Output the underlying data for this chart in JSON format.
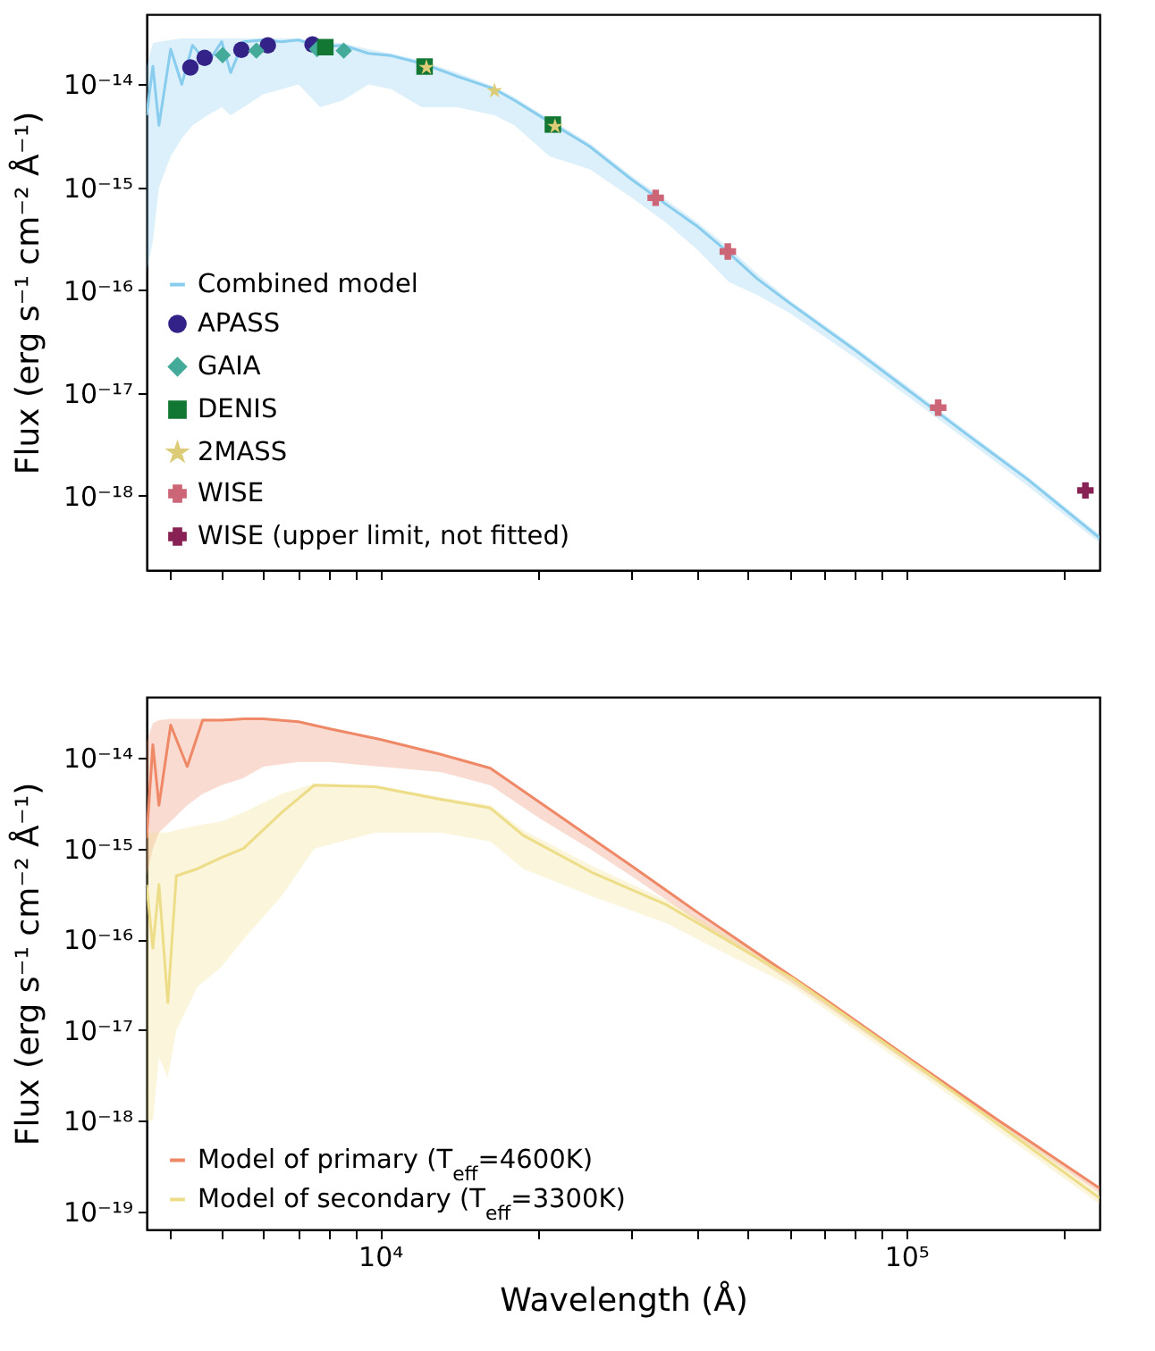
{
  "chart_data": [
    {
      "type": "scatter",
      "ylabel": "Flux (erg s⁻¹ cm⁻² Å⁻¹)",
      "xlim": [
        3600,
        233000
      ],
      "ylim": [
        1.9e-19,
        4.8e-14
      ],
      "xticks": [
        {
          "value": 4000,
          "label": null
        },
        {
          "value": 5000,
          "label": null
        },
        {
          "value": 6000,
          "label": null
        },
        {
          "value": 7000,
          "label": null
        },
        {
          "value": 8000,
          "label": null
        },
        {
          "value": 9000,
          "label": null
        },
        {
          "value": 10000,
          "label": null
        },
        {
          "value": 20000,
          "label": null
        },
        {
          "value": 30000,
          "label": null
        },
        {
          "value": 40000,
          "label": null
        },
        {
          "value": 50000,
          "label": null
        },
        {
          "value": 60000,
          "label": null
        },
        {
          "value": 70000,
          "label": null
        },
        {
          "value": 80000,
          "label": null
        },
        {
          "value": 90000,
          "label": null
        },
        {
          "value": 100000,
          "label": null
        },
        {
          "value": 200000,
          "label": null
        }
      ],
      "yticks": [
        {
          "value": 1e-18,
          "label": "10⁻¹⁸"
        },
        {
          "value": 1e-17,
          "label": "10⁻¹⁷"
        },
        {
          "value": 1e-16,
          "label": "10⁻¹⁶"
        },
        {
          "value": 1e-15,
          "label": "10⁻¹⁵"
        },
        {
          "value": 1e-14,
          "label": "10⁻¹⁴"
        }
      ],
      "log": "xy",
      "grid": false,
      "legend": "bottom left",
      "tick_labels": "y",
      "series": [
        {
          "name": "Combined model",
          "type": "line",
          "color": "#88ccee",
          "x": [
            3600,
            3700,
            3800,
            4000,
            4200,
            4400,
            4700,
            5000,
            5200,
            5500,
            6000,
            6500,
            7000,
            7700,
            8500,
            9500,
            10500,
            12000,
            14000,
            16500,
            18000,
            21000,
            25000,
            30000,
            35000,
            40000,
            46000,
            52000,
            60000,
            80000,
            100000,
            130000,
            170000,
            233000
          ],
          "values": [
            5e-15,
            1.5e-14,
            4e-15,
            2.2e-14,
            1e-14,
            2.4e-14,
            1.6e-14,
            2.6e-14,
            1.3e-14,
            2.6e-14,
            2.7e-14,
            2.6e-14,
            2.7e-14,
            2.3e-14,
            2.4e-14,
            2e-14,
            1.9e-14,
            1.6e-14,
            1.2e-14,
            9e-15,
            7e-15,
            4.3e-15,
            2.5e-15,
            1.2e-15,
            6.8e-16,
            4.2e-16,
            2.3e-16,
            1.3e-16,
            7.5e-17,
            2.6e-17,
            1.1e-17,
            4e-18,
            1.45e-18,
            3.9e-19
          ],
          "lower": [
            1.5e-16,
            3e-16,
            1e-15,
            2e-15,
            3e-15,
            4e-15,
            5e-15,
            6e-15,
            5e-15,
            6e-15,
            8e-15,
            9e-15,
            1e-14,
            6e-15,
            7e-15,
            1e-14,
            9e-15,
            6e-15,
            6e-15,
            5e-15,
            4e-15,
            2e-15,
            1.5e-15,
            8e-16,
            4.5e-16,
            2.5e-16,
            1.2e-16,
            9e-17,
            6e-17,
            2.2e-17,
            9.5e-18,
            3.5e-18,
            1.25e-18,
            3.5e-19
          ],
          "upper": [
            1.5e-14,
            2.5e-14,
            2.6e-14,
            2.7e-14,
            2.8e-14,
            2.8e-14,
            2.8e-14,
            2.8e-14,
            2.8e-14,
            2.8e-14,
            2.8e-14,
            2.8e-14,
            2.8e-14,
            2.6e-14,
            2.5e-14,
            2.2e-14,
            2e-14,
            1.7e-14,
            1.3e-14,
            9.5e-15,
            7.5e-15,
            4.6e-15,
            2.7e-15,
            1.3e-15,
            7.5e-16,
            4.6e-16,
            2.6e-16,
            1.45e-16,
            8e-17,
            2.8e-17,
            1.2e-17,
            4.3e-18,
            1.55e-18,
            4.2e-19
          ]
        },
        {
          "name": "APASS",
          "marker": "circle",
          "color": "#332288",
          "x": [
            4360,
            4640,
            5450,
            6120,
            7440
          ],
          "values": [
            1.46e-14,
            1.81e-14,
            2.17e-14,
            2.4e-14,
            2.44e-14
          ]
        },
        {
          "name": "GAIA",
          "marker": "diamond",
          "color": "#44aa99",
          "x": [
            5020,
            5820,
            7590,
            8530
          ],
          "values": [
            1.92e-14,
            2.13e-14,
            2.2e-14,
            2.13e-14
          ]
        },
        {
          "name": "DENIS",
          "marker": "square",
          "color": "#117733",
          "x": [
            7870,
            12150,
            21300
          ],
          "values": [
            2.3e-14,
            1.49e-14,
            4.07e-15
          ]
        },
        {
          "name": "2MASS",
          "marker": "star",
          "color": "#ddcc77",
          "x": [
            12250,
            16500,
            21500
          ],
          "values": [
            1.46e-14,
            8.65e-15,
            3.9e-15
          ]
        },
        {
          "name": "WISE",
          "marker": "cross",
          "color": "#cc6677",
          "x": [
            33400,
            45800,
            115000
          ],
          "values": [
            7.9e-16,
            2.37e-16,
            7.2e-18
          ]
        },
        {
          "name": "WISE (upper limit, not fitted)",
          "marker": "cross",
          "color": "#882255",
          "x": [
            219000
          ],
          "values": [
            1.13e-18
          ]
        }
      ]
    },
    {
      "type": "line",
      "xlabel": "Wavelength (Å)",
      "ylabel": "Flux (erg s⁻¹ cm⁻² Å⁻¹)",
      "xlim": [
        3600,
        233000
      ],
      "ylim": [
        6.3e-20,
        4.7e-14
      ],
      "xticks": [
        {
          "value": 4000,
          "label": null
        },
        {
          "value": 5000,
          "label": null
        },
        {
          "value": 6000,
          "label": null
        },
        {
          "value": 7000,
          "label": null
        },
        {
          "value": 8000,
          "label": null
        },
        {
          "value": 9000,
          "label": null
        },
        {
          "value": 10000,
          "label": "10⁴"
        },
        {
          "value": 20000,
          "label": null
        },
        {
          "value": 30000,
          "label": null
        },
        {
          "value": 40000,
          "label": null
        },
        {
          "value": 50000,
          "label": null
        },
        {
          "value": 60000,
          "label": null
        },
        {
          "value": 70000,
          "label": null
        },
        {
          "value": 80000,
          "label": null
        },
        {
          "value": 90000,
          "label": null
        },
        {
          "value": 100000,
          "label": "10⁵"
        },
        {
          "value": 200000,
          "label": null
        }
      ],
      "yticks": [
        {
          "value": 1e-19,
          "label": "10⁻¹⁹"
        },
        {
          "value": 1e-18,
          "label": "10⁻¹⁸"
        },
        {
          "value": 1e-17,
          "label": "10⁻¹⁷"
        },
        {
          "value": 1e-16,
          "label": "10⁻¹⁶"
        },
        {
          "value": 1e-15,
          "label": "10⁻¹⁵"
        },
        {
          "value": 1e-14,
          "label": "10⁻¹⁴"
        }
      ],
      "log": "xy",
      "grid": false,
      "legend": "bottom left",
      "series": [
        {
          "name": "Model of primary (T$_{eff}$=4600K)",
          "color": "#ee8866",
          "x": [
            3600,
            3700,
            3800,
            4000,
            4300,
            4600,
            5000,
            5500,
            6000,
            7000,
            8000,
            10000,
            13000,
            16200,
            20000,
            25000,
            30000,
            40000,
            50000,
            70000,
            100000,
            150000,
            233000
          ],
          "values": [
            1.3e-15,
            1.4e-14,
            3e-15,
            2.3e-14,
            8e-15,
            2.6e-14,
            2.6e-14,
            2.7e-14,
            2.7e-14,
            2.5e-14,
            2.1e-14,
            1.6e-14,
            1.1e-14,
            7.7e-15,
            3.3e-15,
            1.35e-15,
            6.5e-16,
            2e-16,
            8.3e-17,
            2.2e-17,
            5.1e-18,
            1e-18,
            1.8e-19
          ],
          "lower": [
            5e-16,
            1e-15,
            1.5e-15,
            2e-15,
            3e-15,
            4e-15,
            5e-15,
            6e-15,
            8e-15,
            9e-15,
            9e-15,
            8e-15,
            7e-15,
            5e-15,
            2.2e-15,
            1e-15,
            5e-16,
            1.6e-16,
            7e-17,
            1.9e-17,
            4.5e-18,
            9e-19,
            1.6e-19
          ],
          "upper": [
            1.5e-14,
            2.4e-14,
            2.6e-14,
            2.7e-14,
            2.7e-14,
            2.7e-14,
            2.7e-14,
            2.7e-14,
            2.7e-14,
            2.5e-14,
            2.1e-14,
            1.6e-14,
            1.1e-14,
            7.7e-15,
            3.3e-15,
            1.35e-15,
            6.5e-16,
            2e-16,
            8.3e-17,
            2.2e-17,
            5.1e-18,
            1e-18,
            1.8e-19
          ]
        },
        {
          "name": "Model of secondary (T$_{eff}$=3300K)",
          "color": "#eedd88",
          "x": [
            3600,
            3700,
            3800,
            3950,
            4100,
            4500,
            5000,
            5500,
            6500,
            7500,
            9800,
            13000,
            16200,
            18700,
            25200,
            35000,
            45300,
            60800,
            110000,
            233000
          ],
          "values": [
            4e-16,
            8e-17,
            4e-16,
            2e-17,
            5e-16,
            6e-16,
            8e-16,
            1e-15,
            2.5e-15,
            5e-15,
            4.8e-15,
            3.5e-15,
            2.8e-15,
            1.4e-15,
            5.5e-16,
            2.4e-16,
            1e-16,
            3.7e-17,
            3.3e-18,
            1.4e-19
          ],
          "lower": [
            1e-18,
            1e-18,
            5e-18,
            3e-18,
            1e-17,
            3e-17,
            5e-17,
            1e-16,
            3e-16,
            1e-15,
            1.5e-15,
            1.5e-15,
            1.2e-15,
            6e-16,
            3e-16,
            1.5e-16,
            7e-17,
            3e-17,
            2.8e-18,
            1.2e-19
          ],
          "upper": [
            1.5e-15,
            1.5e-15,
            1.5e-15,
            1.5e-15,
            1.6e-15,
            1.8e-15,
            2e-15,
            2.5e-15,
            4e-15,
            5.2e-15,
            5e-15,
            3.7e-15,
            3e-15,
            1.6e-15,
            6.5e-16,
            2.7e-16,
            1.15e-16,
            4e-17,
            3.6e-18,
            1.6e-19
          ]
        }
      ]
    }
  ]
}
